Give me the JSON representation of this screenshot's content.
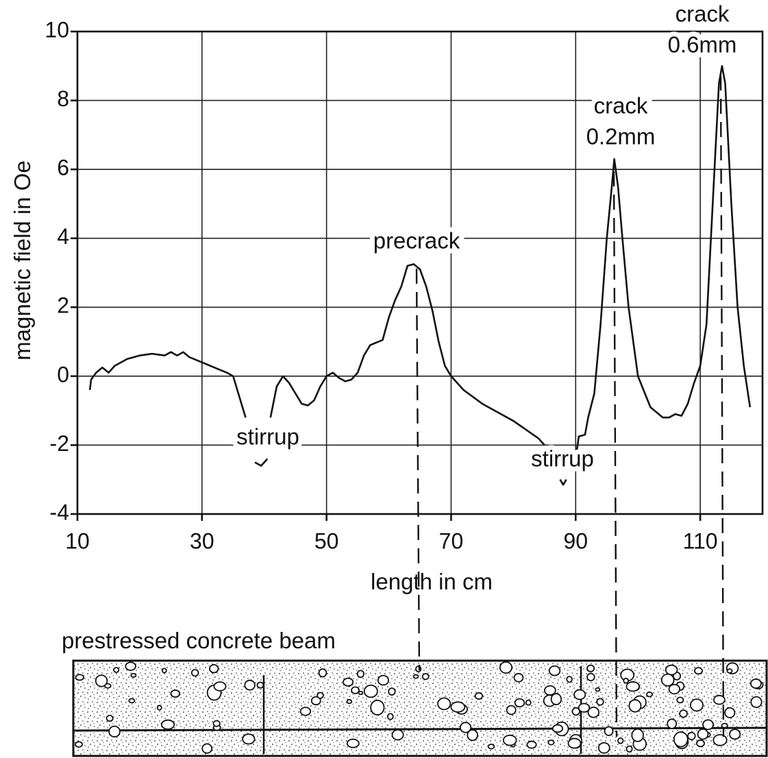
{
  "chart_data": {
    "type": "line",
    "x_label": "length in cm",
    "y_label": "magnetic field in Oe",
    "xlim": [
      10,
      120
    ],
    "xticks": [
      10,
      30,
      50,
      70,
      90,
      110
    ],
    "ylim": [
      -4,
      10
    ],
    "yticks": [
      -4,
      -2,
      0,
      2,
      4,
      6,
      8,
      10
    ],
    "grid": true,
    "series": [
      {
        "color": "#111111",
        "x": [
          12,
          12.2,
          13,
          14,
          15,
          16,
          18,
          20,
          22,
          24,
          25,
          26,
          27,
          28,
          30,
          32,
          34,
          35,
          36,
          37,
          null,
          38.5,
          39.5,
          40.5,
          null,
          41,
          42,
          43,
          44,
          45,
          46,
          47,
          48,
          49,
          50,
          51,
          52,
          53,
          54,
          55,
          56,
          57,
          59,
          60,
          61,
          62,
          63,
          64,
          65,
          66,
          67,
          68,
          69,
          70,
          72,
          75,
          80,
          84,
          85,
          null,
          87.5,
          88,
          88.5,
          null,
          90,
          90.5,
          91.5,
          92,
          93,
          94,
          95,
          95.8,
          96.2,
          96.8,
          97.5,
          98.5,
          100,
          102,
          104,
          105,
          106,
          107,
          108,
          109,
          110,
          111,
          112,
          113,
          113.5,
          114,
          115,
          116,
          117,
          118
        ],
        "values": [
          -0.4,
          -0.1,
          0.1,
          0.25,
          0.1,
          0.3,
          0.5,
          0.6,
          0.65,
          0.6,
          0.7,
          0.6,
          0.7,
          0.55,
          0.4,
          0.25,
          0.1,
          0,
          -0.6,
          -1.2,
          null,
          -2.5,
          -2.6,
          -2.4,
          null,
          -1.2,
          -0.3,
          0,
          -0.2,
          -0.5,
          -0.8,
          -0.85,
          -0.7,
          -0.3,
          0,
          0.1,
          -0.05,
          -0.15,
          -0.1,
          0.1,
          0.6,
          0.9,
          1.05,
          1.7,
          2.2,
          2.6,
          3.2,
          3.25,
          3.1,
          2.6,
          1.9,
          1.0,
          0.3,
          0,
          -0.4,
          -0.8,
          -1.3,
          -1.8,
          -2.0,
          null,
          -3.0,
          -3.15,
          -3.0,
          null,
          -2.4,
          -1.75,
          -1.7,
          -1.2,
          -0.5,
          1.5,
          4.0,
          5.5,
          6.3,
          5.5,
          4.0,
          2.0,
          0,
          -0.9,
          -1.2,
          -1.2,
          -1.1,
          -1.15,
          -0.8,
          -0.2,
          0.3,
          1.5,
          5.0,
          8.5,
          9.0,
          8.5,
          5.0,
          2.0,
          0.3,
          -0.9
        ]
      }
    ],
    "annotations": [
      [
        "stirrup"
      ],
      [
        "precrack"
      ],
      [
        "stirrup"
      ],
      [
        "crack",
        "0.2mm"
      ],
      [
        "crack",
        "0.6mm"
      ]
    ],
    "beam_label": "prestressed concrete beam"
  }
}
